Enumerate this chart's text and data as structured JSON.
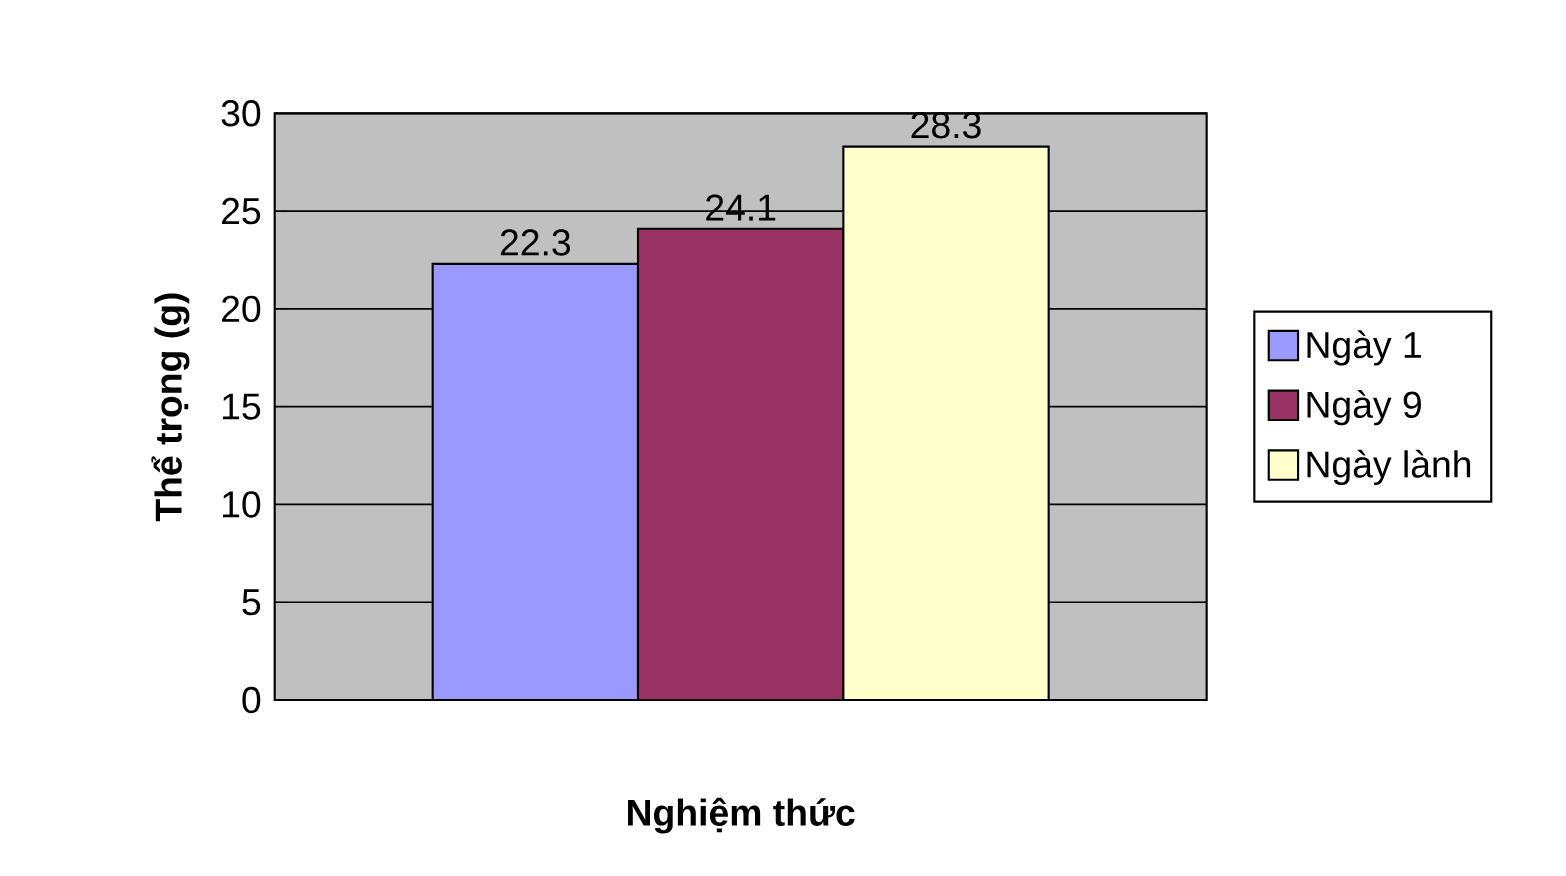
{
  "chart_data": {
    "type": "bar",
    "xlabel": "Nghiệm thức",
    "ylabel": "Thể trọng (g)",
    "categories": [
      null
    ],
    "series": [
      {
        "name": "Ngày 1",
        "color": "#9999ff",
        "values": [
          22.3
        ]
      },
      {
        "name": "Ngày 9",
        "color": "#993366",
        "values": [
          24.1
        ]
      },
      {
        "name": "Ngày lành",
        "color": "#ffffcc",
        "values": [
          28.3
        ]
      }
    ],
    "ylim": [
      0,
      30
    ],
    "yticks": [
      0,
      5,
      10,
      15,
      20,
      25,
      30
    ],
    "grid": "y",
    "legend": "right",
    "data_labels": true
  }
}
